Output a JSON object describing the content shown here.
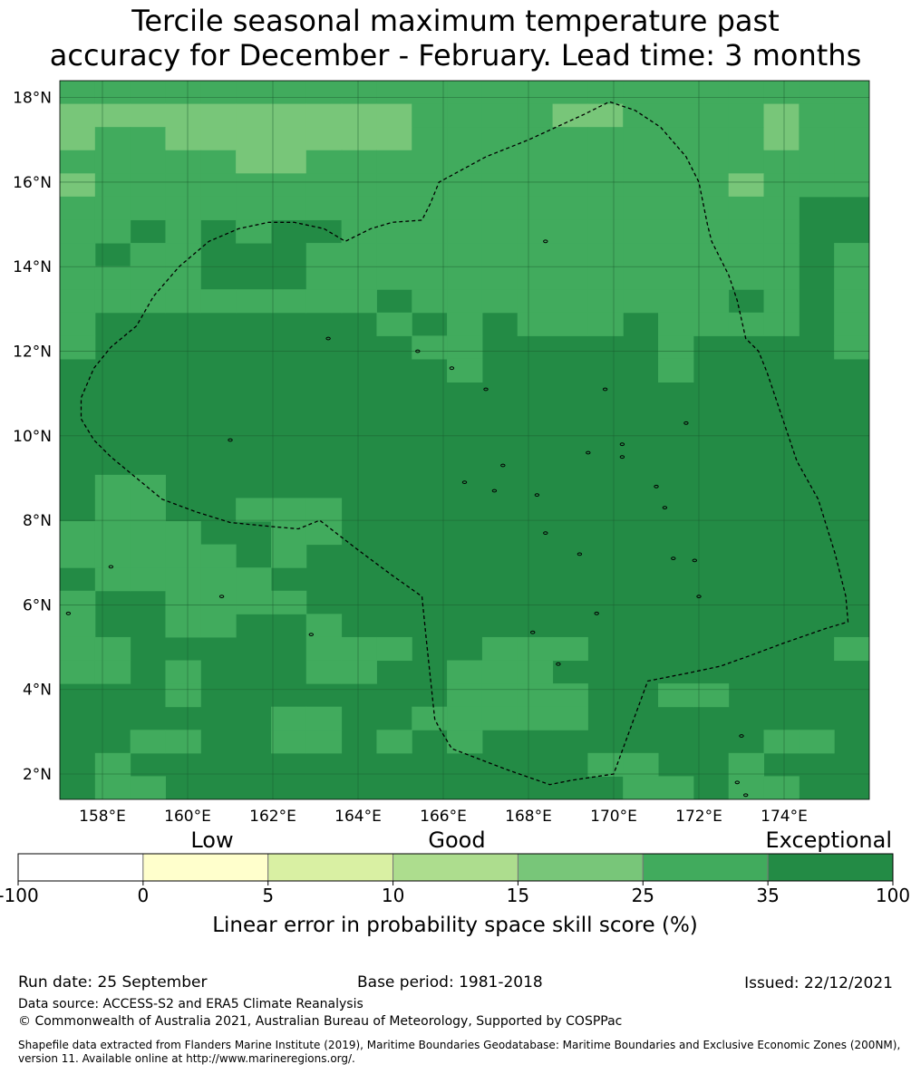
{
  "title": {
    "line1": "Tercile seasonal maximum temperature past",
    "line2": "accuracy for December - February. Lead time: 3 months"
  },
  "map": {
    "lon_min": 157,
    "lon_max": 176,
    "lat_min": 1.4,
    "lat_max": 18.4,
    "lat_ticks": [
      {
        "value": 18,
        "label": "18°N"
      },
      {
        "value": 16,
        "label": "16°N"
      },
      {
        "value": 14,
        "label": "14°N"
      },
      {
        "value": 12,
        "label": "12°N"
      },
      {
        "value": 10,
        "label": "10°N"
      },
      {
        "value": 8,
        "label": "8°N"
      },
      {
        "value": 6,
        "label": "6°N"
      },
      {
        "value": 4,
        "label": "4°N"
      },
      {
        "value": 2,
        "label": "2°N"
      }
    ],
    "lon_ticks": [
      {
        "value": 158,
        "label": "158°E"
      },
      {
        "value": 160,
        "label": "160°E"
      },
      {
        "value": 162,
        "label": "162°E"
      },
      {
        "value": 164,
        "label": "164°E"
      },
      {
        "value": 166,
        "label": "166°E"
      },
      {
        "value": 168,
        "label": "168°E"
      },
      {
        "value": 170,
        "label": "170°E"
      },
      {
        "value": 172,
        "label": "172°E"
      },
      {
        "value": 174,
        "label": "174°E"
      }
    ],
    "colors": {
      "exceptional": "#238b45",
      "good_high": "#41ab5d",
      "good_mid": "#78c679"
    },
    "eez_boundary": [
      [
        157.5,
        10.4
      ],
      [
        157.8,
        9.9
      ],
      [
        158.2,
        9.5
      ],
      [
        158.8,
        9.0
      ],
      [
        159.4,
        8.5
      ],
      [
        160.2,
        8.2
      ],
      [
        161.0,
        7.95
      ],
      [
        162.0,
        7.85
      ],
      [
        162.6,
        7.8
      ],
      [
        163.1,
        8.0
      ],
      [
        164.0,
        7.3
      ],
      [
        164.8,
        6.7
      ],
      [
        165.5,
        6.2
      ],
      [
        165.6,
        5.2
      ],
      [
        165.8,
        3.3
      ],
      [
        165.9,
        3.1
      ],
      [
        166.2,
        2.6
      ],
      [
        167.5,
        2.1
      ],
      [
        168.5,
        1.75
      ],
      [
        169.0,
        1.85
      ],
      [
        170.0,
        2.0
      ],
      [
        170.8,
        4.2
      ],
      [
        171.8,
        4.4
      ],
      [
        172.5,
        4.55
      ],
      [
        173.2,
        4.8
      ],
      [
        174.0,
        5.1
      ],
      [
        175.0,
        5.45
      ],
      [
        175.5,
        5.6
      ],
      [
        175.45,
        6.2
      ],
      [
        175.2,
        7.2
      ],
      [
        174.8,
        8.5
      ],
      [
        174.3,
        9.4
      ],
      [
        173.9,
        10.6
      ],
      [
        173.6,
        11.5
      ],
      [
        173.4,
        12.0
      ],
      [
        173.1,
        12.3
      ],
      [
        172.9,
        13.2
      ],
      [
        172.7,
        13.8
      ],
      [
        172.3,
        14.6
      ],
      [
        172.2,
        15.0
      ],
      [
        172.0,
        16.0
      ],
      [
        171.7,
        16.6
      ],
      [
        171.1,
        17.3
      ],
      [
        170.5,
        17.7
      ],
      [
        169.9,
        17.9
      ],
      [
        169.3,
        17.6
      ],
      [
        168.0,
        17.0
      ],
      [
        167.0,
        16.6
      ],
      [
        165.9,
        16.0
      ],
      [
        165.7,
        15.5
      ],
      [
        165.5,
        15.1
      ],
      [
        164.8,
        15.05
      ],
      [
        164.3,
        14.9
      ],
      [
        163.7,
        14.6
      ],
      [
        163.2,
        14.9
      ],
      [
        162.5,
        15.05
      ],
      [
        161.9,
        15.05
      ],
      [
        161.2,
        14.9
      ],
      [
        160.5,
        14.6
      ],
      [
        159.8,
        14.0
      ],
      [
        159.2,
        13.3
      ],
      [
        158.8,
        12.6
      ],
      [
        158.2,
        12.1
      ],
      [
        157.8,
        11.6
      ],
      [
        157.5,
        10.9
      ],
      [
        157.5,
        10.4
      ]
    ],
    "islands": [
      [
        158.2,
        6.9
      ],
      [
        162.9,
        5.3
      ],
      [
        168.1,
        5.35
      ],
      [
        169.6,
        5.8
      ],
      [
        171.4,
        7.1
      ],
      [
        171.9,
        7.05
      ],
      [
        172.0,
        6.2
      ],
      [
        168.7,
        4.6
      ],
      [
        173.0,
        2.9
      ],
      [
        172.9,
        1.8
      ],
      [
        173.1,
        1.5
      ],
      [
        166.2,
        11.6
      ],
      [
        163.3,
        12.3
      ],
      [
        165.4,
        12.0
      ],
      [
        167.0,
        11.1
      ],
      [
        169.8,
        11.1
      ],
      [
        171.7,
        10.3
      ],
      [
        170.2,
        9.8
      ],
      [
        169.4,
        9.6
      ],
      [
        167.4,
        9.3
      ],
      [
        166.5,
        8.9
      ],
      [
        167.2,
        8.7
      ],
      [
        168.2,
        8.6
      ],
      [
        170.2,
        9.5
      ],
      [
        171.0,
        8.8
      ],
      [
        171.2,
        8.3
      ],
      [
        168.4,
        7.7
      ],
      [
        169.2,
        7.2
      ],
      [
        160.8,
        6.2
      ],
      [
        161.0,
        9.9
      ],
      [
        168.4,
        14.6
      ],
      [
        157.2,
        5.8
      ]
    ]
  },
  "legend": {
    "categories": [
      {
        "label": "Low"
      },
      {
        "label": "Good"
      },
      {
        "label": "Exceptional"
      }
    ],
    "colors": [
      "#ffffff",
      "#ffffcc",
      "#d9f0a3",
      "#addd8e",
      "#78c679",
      "#41ab5d",
      "#238b45"
    ],
    "ticks": [
      "-100",
      "0",
      "5",
      "10",
      "15",
      "25",
      "35",
      "100"
    ],
    "caption": "Linear error in probability space skill score (%)"
  },
  "footer": {
    "run_date": "Run date: 25 September",
    "base_period": "Base period: 1981-2018",
    "issued": "Issued: 22/12/2021",
    "data_source": "Data source: ACCESS-S2 and ERA5 Climate Reanalysis",
    "copyright": "© Commonwealth of Australia 2021, Australian Bureau of Meteorology, Supported by COSPPac",
    "shapefile_line1": "Shapefile data extracted from Flanders Marine Institute (2019), Maritime Boundaries Geodatabase: Maritime Boundaries and Exclusive Economic Zones (200NM),",
    "shapefile_line2": "version 11. Available online at http://www.marineregions.org/."
  }
}
